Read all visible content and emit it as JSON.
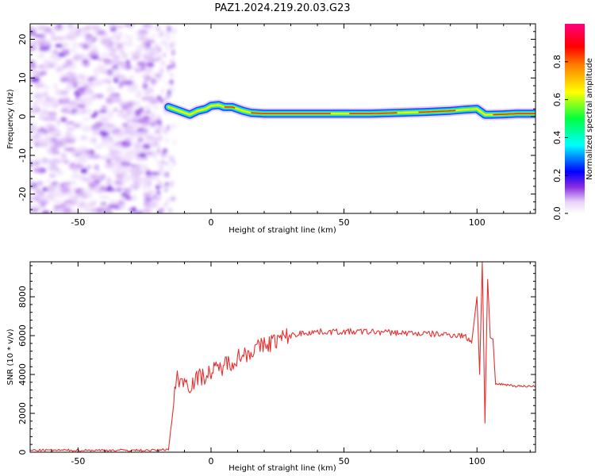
{
  "title": "PAZ1.2024.219.20.03.G23",
  "colors": {
    "snr_line": "#e53030",
    "axes": "#000000"
  },
  "chart_data": [
    {
      "type": "heatmap",
      "xlabel": "Height of straight line (km)",
      "ylabel": "Frequency (Hz)",
      "xlim": [
        -68,
        122
      ],
      "ylim": [
        -25,
        24
      ],
      "xticks": [
        -50,
        0,
        50,
        100
      ],
      "xtick_labels": [
        "-50",
        "0",
        "50",
        "100"
      ],
      "yticks": [
        -20,
        -10,
        0,
        10,
        20
      ],
      "ytick_labels": [
        "-20",
        "-10",
        "0",
        "10",
        "20"
      ],
      "noise_region_x": [
        -68,
        -16
      ],
      "ridge": {
        "x": [
          -16,
          -12,
          -8,
          -5,
          -2,
          0,
          3,
          5,
          8,
          12,
          15,
          20,
          30,
          40,
          50,
          60,
          70,
          80,
          90,
          95,
          100,
          103,
          105,
          110,
          115,
          122
        ],
        "y": [
          2.5,
          1.5,
          0.5,
          1.5,
          2.0,
          2.8,
          3.0,
          2.5,
          2.5,
          1.5,
          1.0,
          0.8,
          0.8,
          0.8,
          0.8,
          0.8,
          1.0,
          1.2,
          1.5,
          1.8,
          2.0,
          0.5,
          0.5,
          0.6,
          0.8,
          0.8
        ]
      },
      "colorbar": {
        "label": "Normalized spectral amplitude",
        "range": [
          0,
          1
        ],
        "ticks": [
          0.0,
          0.2,
          0.4,
          0.6,
          0.8
        ],
        "tick_labels": [
          "0.0",
          "0.2",
          "0.4",
          "0.6",
          "0.8"
        ]
      },
      "grid": false
    },
    {
      "type": "line",
      "xlabel": "Height of straight line (km)",
      "ylabel": "SNR (10 * v/v)",
      "xlim": [
        -68,
        122
      ],
      "ylim": [
        0,
        9800
      ],
      "xticks": [
        -50,
        0,
        50,
        100
      ],
      "xtick_labels": [
        "-50",
        "0",
        "50",
        "100"
      ],
      "yticks": [
        0,
        2000,
        4000,
        6000,
        8000
      ],
      "ytick_labels": [
        "0",
        "2000",
        "4000",
        "6000",
        "8000"
      ],
      "series": [
        {
          "x": [
            -68,
            -50,
            -30,
            -20,
            -16,
            -14,
            -13,
            -12,
            -10,
            -8,
            -5,
            -2,
            0,
            3,
            5,
            8,
            10,
            15,
            20,
            25,
            30,
            35,
            40,
            50,
            60,
            70,
            80,
            90,
            95,
            98,
            100,
            101,
            102,
            103,
            104,
            105,
            106,
            107,
            110,
            115,
            122
          ],
          "y": [
            100,
            100,
            100,
            100,
            150,
            2500,
            3900,
            3800,
            3600,
            3500,
            3800,
            4000,
            4100,
            4300,
            4500,
            4700,
            4900,
            5200,
            5500,
            5800,
            6000,
            6150,
            6200,
            6200,
            6200,
            6150,
            6100,
            6050,
            6000,
            5700,
            8000,
            4000,
            9800,
            1500,
            8900,
            5900,
            5800,
            3500,
            3500,
            3400,
            3400
          ]
        }
      ],
      "grid": false
    }
  ]
}
